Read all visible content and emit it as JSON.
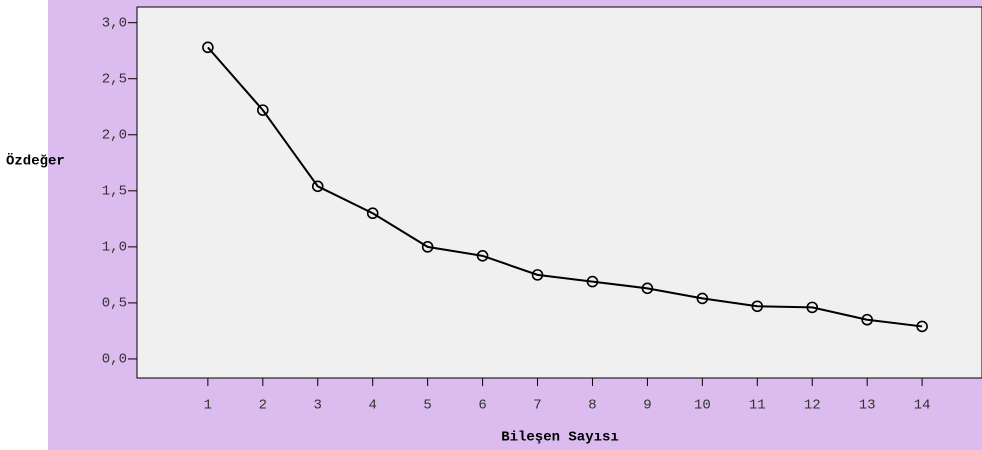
{
  "chart_data": {
    "type": "line",
    "xlabel": "Bileşen Sayısı",
    "ylabel": "Özdeğer",
    "x": [
      1,
      2,
      3,
      4,
      5,
      6,
      7,
      8,
      9,
      10,
      11,
      12,
      13,
      14
    ],
    "series": [
      {
        "name": null,
        "color": "#000000",
        "values": [
          2.78,
          2.22,
          1.54,
          1.3,
          1.0,
          0.92,
          0.75,
          0.69,
          0.63,
          0.54,
          0.47,
          0.46,
          0.35,
          0.29
        ]
      }
    ],
    "xlim": [
      -0.29,
      15.09
    ],
    "xticks": [
      1,
      2,
      3,
      4,
      5,
      6,
      7,
      8,
      9,
      10,
      11,
      12,
      13,
      14
    ],
    "ylim": [
      -0.17,
      3.14
    ],
    "yticks": [
      {
        "value": 0,
        "label": "0,0"
      },
      {
        "value": 0.5,
        "label": "0,5"
      },
      {
        "value": 1,
        "label": "1,0"
      },
      {
        "value": 1.5,
        "label": "1,5"
      },
      {
        "value": 2,
        "label": "2,0"
      },
      {
        "value": 2.5,
        "label": "2,5"
      },
      {
        "value": 3,
        "label": "3,0"
      }
    ],
    "grid": false
  }
}
